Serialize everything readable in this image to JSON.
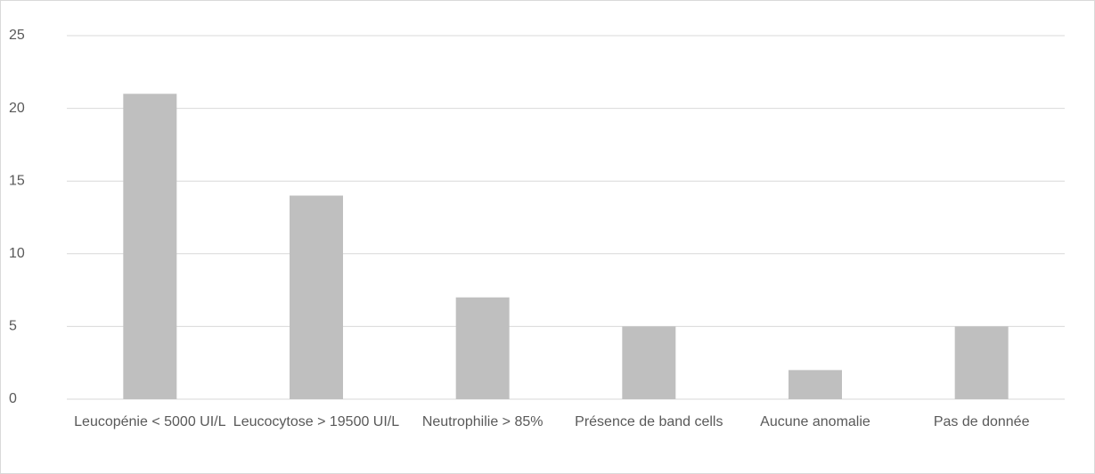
{
  "chart_data": {
    "type": "bar",
    "categories": [
      "Leucopénie < 5000 UI/L",
      "Leucocytose > 19500 UI/L",
      "Neutrophilie > 85%",
      "Présence de band cells",
      "Aucune anomalie",
      "Pas de donnée"
    ],
    "values": [
      21,
      14,
      7,
      5,
      2,
      5
    ],
    "color": "#bfbfbf",
    "ylim": [
      0,
      25
    ],
    "yticks": [
      0,
      5,
      10,
      15,
      20,
      25
    ],
    "grid": true
  }
}
